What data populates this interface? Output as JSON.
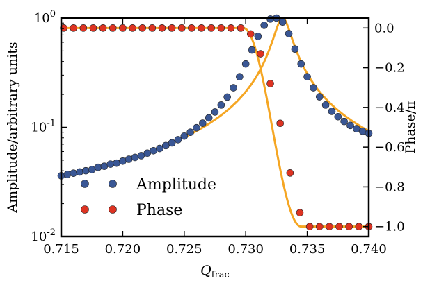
{
  "chart_data": {
    "type": "scatter",
    "xlabel_main": "Q",
    "xlabel_sub": "frac",
    "ylabel_left": "Amplitude/arbitrary units",
    "ylabel_right": "Phase/π",
    "xlim": [
      0.715,
      0.74
    ],
    "ylim_left": [
      0.01,
      1.0
    ],
    "ylim_left_scale": "log",
    "ylim_right": [
      -1.05,
      0.05
    ],
    "grid": false,
    "legend_position": "lower-left",
    "x_ticks": [
      {
        "value": 0.715,
        "label": "0.715"
      },
      {
        "value": 0.72,
        "label": "0.720"
      },
      {
        "value": 0.725,
        "label": "0.725"
      },
      {
        "value": 0.73,
        "label": "0.730"
      },
      {
        "value": 0.735,
        "label": "0.735"
      },
      {
        "value": 0.74,
        "label": "0.740"
      }
    ],
    "y_left_ticks": [
      {
        "value": 1.0,
        "base": "10",
        "exp": "0"
      },
      {
        "value": 0.1,
        "base": "10",
        "exp": "-1"
      },
      {
        "value": 0.01,
        "base": "10",
        "exp": "-2"
      }
    ],
    "y_right_ticks": [
      {
        "value": 0.0,
        "label": "0.0"
      },
      {
        "value": -0.2,
        "label": "−0.2"
      },
      {
        "value": -0.4,
        "label": "−0.4"
      },
      {
        "value": -0.6,
        "label": "−0.6"
      },
      {
        "value": -0.8,
        "label": "−0.8"
      },
      {
        "value": -1.0,
        "label": "−1.0"
      }
    ],
    "fit_params": {
      "amplitude_f0": 0.733,
      "amplitude_gamma": 0.00065,
      "amplitude_peak": 1.0,
      "phase_center": 0.7325,
      "phase_scale": 0.0009,
      "phase_x_start": 0.7298,
      "phase_x_end": 0.7345
    },
    "series": [
      {
        "name": "Amplitude",
        "axis": "left",
        "color": "#3a5795",
        "x": [
          0.715,
          0.7155,
          0.716,
          0.7165,
          0.717,
          0.7175,
          0.718,
          0.7185,
          0.719,
          0.7195,
          0.72,
          0.7205,
          0.721,
          0.7215,
          0.722,
          0.7225,
          0.723,
          0.7235,
          0.724,
          0.7245,
          0.725,
          0.7255,
          0.726,
          0.7265,
          0.727,
          0.7275,
          0.728,
          0.7285,
          0.729,
          0.7295,
          0.73,
          0.7305,
          0.731,
          0.7315,
          0.732,
          0.7325,
          0.733,
          0.7335,
          0.734,
          0.7345,
          0.735,
          0.7355,
          0.736,
          0.7365,
          0.737,
          0.7375,
          0.738,
          0.7385,
          0.739,
          0.7395,
          0.74
        ],
        "y": [
          0.036,
          0.037,
          0.038,
          0.039,
          0.04,
          0.041,
          0.043,
          0.044,
          0.046,
          0.047,
          0.049,
          0.051,
          0.053,
          0.055,
          0.058,
          0.061,
          0.064,
          0.068,
          0.072,
          0.077,
          0.083,
          0.09,
          0.099,
          0.109,
          0.122,
          0.138,
          0.16,
          0.189,
          0.23,
          0.29,
          0.38,
          0.51,
          0.68,
          0.86,
          0.98,
          1.0,
          0.92,
          0.72,
          0.52,
          0.38,
          0.29,
          0.23,
          0.19,
          0.16,
          0.14,
          0.125,
          0.113,
          0.104,
          0.097,
          0.092,
          0.088
        ]
      },
      {
        "name": "Phase",
        "axis": "right",
        "color": "#dd3322",
        "x": [
          0.7152,
          0.716,
          0.7168,
          0.7176,
          0.7184,
          0.7192,
          0.72,
          0.7208,
          0.7216,
          0.7224,
          0.7232,
          0.724,
          0.7248,
          0.7256,
          0.7264,
          0.7272,
          0.728,
          0.7288,
          0.7296,
          0.7304,
          0.7312,
          0.732,
          0.7328,
          0.7336,
          0.7344,
          0.7352,
          0.736,
          0.7368,
          0.7376,
          0.7384,
          0.7392,
          0.74
        ],
        "y": [
          0.0,
          0.0,
          0.0,
          0.0,
          0.0,
          0.0,
          0.0,
          0.0,
          0.0,
          0.0,
          0.0,
          0.0,
          0.0,
          0.0,
          0.0,
          0.0,
          0.0,
          0.0,
          0.0,
          -0.03,
          -0.13,
          -0.28,
          -0.48,
          -0.73,
          -0.93,
          -1.0,
          -1.0,
          -1.0,
          -1.0,
          -1.0,
          -1.0,
          -1.0
        ]
      }
    ],
    "fit_color": "#f5a623"
  }
}
